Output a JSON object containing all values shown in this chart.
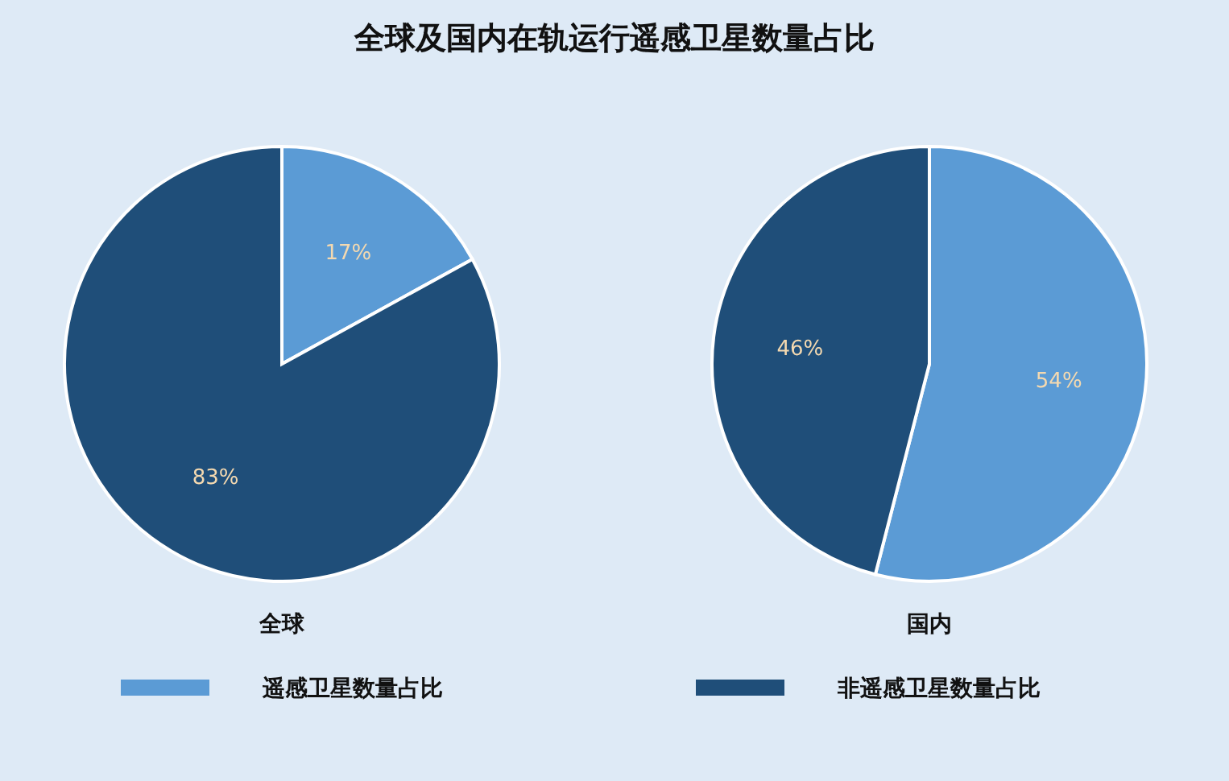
{
  "chart_data": [
    {
      "type": "pie",
      "title": "全球及国内在轨运行遥感卫星数量占比",
      "xlabel": "全球",
      "categories": [
        "遥感卫星数量占比",
        "非遥感卫星数量占比"
      ],
      "values": [
        17,
        83
      ],
      "colors": [
        "#5b9bd5",
        "#1f4e79"
      ],
      "value_labels": [
        "17%",
        "83%"
      ],
      "legend": "bottom"
    },
    {
      "type": "pie",
      "xlabel": "国内",
      "categories": [
        null,
        null
      ],
      "values": [
        54,
        46
      ],
      "colors": [
        "#5b9bd5",
        "#1f4e79"
      ],
      "value_labels": [
        "54%",
        "46%"
      ]
    }
  ]
}
